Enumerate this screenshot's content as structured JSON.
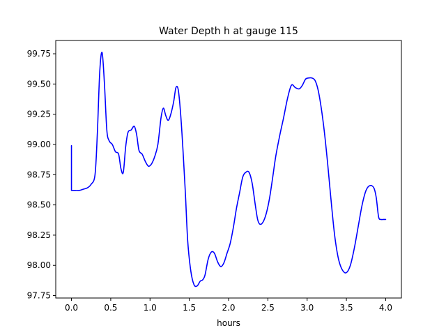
{
  "chart_data": {
    "type": "line",
    "title": "Water Depth h at gauge 115",
    "xlabel": "hours",
    "ylabel": "",
    "xlim": [
      -0.2,
      4.2
    ],
    "ylim": [
      97.73,
      99.86
    ],
    "xticks": [
      0.0,
      0.5,
      1.0,
      1.5,
      2.0,
      2.5,
      3.0,
      3.5,
      4.0
    ],
    "xtick_labels": [
      "0.0",
      "0.5",
      "1.0",
      "1.5",
      "2.0",
      "2.5",
      "3.0",
      "3.5",
      "4.0"
    ],
    "yticks": [
      97.75,
      98.0,
      98.25,
      98.5,
      98.75,
      99.0,
      99.25,
      99.5,
      99.75
    ],
    "ytick_labels": [
      "97.75",
      "98.00",
      "98.25",
      "98.50",
      "98.75",
      "99.00",
      "99.25",
      "99.50",
      "99.75"
    ],
    "grid": false,
    "series": [
      {
        "color": "#0000ff",
        "x": [
          0.0,
          0.0,
          0.05,
          0.1,
          0.15,
          0.2,
          0.25,
          0.3,
          0.33,
          0.36,
          0.39,
          0.42,
          0.45,
          0.48,
          0.52,
          0.56,
          0.6,
          0.63,
          0.66,
          0.69,
          0.72,
          0.76,
          0.8,
          0.83,
          0.86,
          0.9,
          0.94,
          0.98,
          1.02,
          1.06,
          1.1,
          1.14,
          1.17,
          1.2,
          1.23,
          1.26,
          1.3,
          1.33,
          1.36,
          1.39,
          1.42,
          1.45,
          1.48,
          1.52,
          1.56,
          1.6,
          1.64,
          1.67,
          1.7,
          1.74,
          1.78,
          1.82,
          1.86,
          1.9,
          1.94,
          1.98,
          2.02,
          2.06,
          2.1,
          2.14,
          2.18,
          2.22,
          2.26,
          2.3,
          2.34,
          2.37,
          2.4,
          2.44,
          2.48,
          2.52,
          2.56,
          2.6,
          2.65,
          2.7,
          2.75,
          2.8,
          2.85,
          2.9,
          2.94,
          2.98,
          3.02,
          3.06,
          3.1,
          3.14,
          3.18,
          3.22,
          3.26,
          3.3,
          3.35,
          3.4,
          3.45,
          3.5,
          3.55,
          3.6,
          3.65,
          3.7,
          3.75,
          3.8,
          3.85,
          3.88,
          3.91,
          3.94,
          3.97,
          4.0
        ],
        "values": [
          98.99,
          98.62,
          98.62,
          98.62,
          98.63,
          98.64,
          98.67,
          98.75,
          99.1,
          99.6,
          99.76,
          99.5,
          99.12,
          99.03,
          99.0,
          98.94,
          98.92,
          98.8,
          98.77,
          98.98,
          99.1,
          99.12,
          99.15,
          99.08,
          98.95,
          98.92,
          98.86,
          98.82,
          98.84,
          98.9,
          99.0,
          99.22,
          99.3,
          99.24,
          99.2,
          99.24,
          99.35,
          99.47,
          99.45,
          99.25,
          98.95,
          98.6,
          98.2,
          97.95,
          97.84,
          97.83,
          97.87,
          97.88,
          97.92,
          98.05,
          98.11,
          98.1,
          98.03,
          97.99,
          98.02,
          98.1,
          98.18,
          98.31,
          98.47,
          98.6,
          98.73,
          98.77,
          98.77,
          98.68,
          98.5,
          98.38,
          98.34,
          98.36,
          98.43,
          98.55,
          98.72,
          98.9,
          99.07,
          99.22,
          99.38,
          99.49,
          99.47,
          99.46,
          99.49,
          99.54,
          99.55,
          99.55,
          99.53,
          99.45,
          99.3,
          99.1,
          98.85,
          98.57,
          98.25,
          98.05,
          97.96,
          97.94,
          98.0,
          98.14,
          98.32,
          98.5,
          98.62,
          98.66,
          98.64,
          98.56,
          98.4,
          98.38,
          98.38,
          98.38
        ]
      }
    ]
  }
}
